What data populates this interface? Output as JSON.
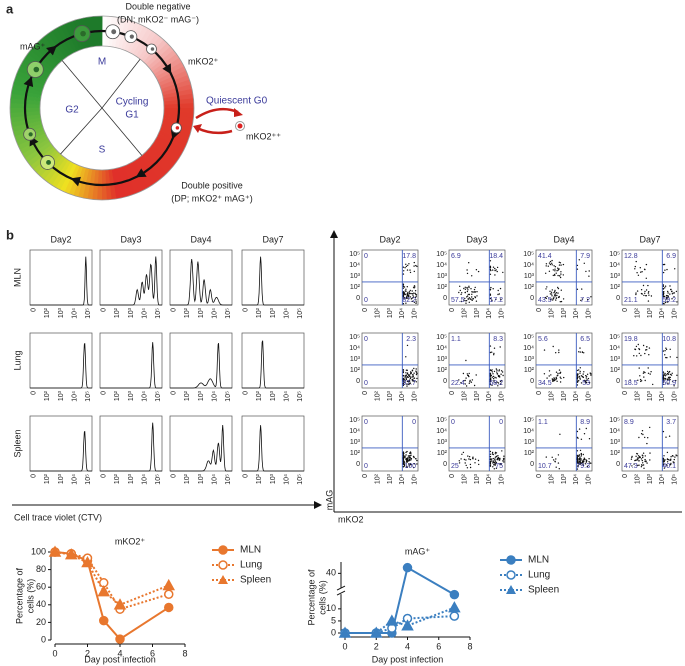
{
  "panel_a": {
    "label": "a",
    "dn": "Double negative",
    "dn_sub": "(DN; mKO2⁻ mAG⁻)",
    "mag": "mAG⁺",
    "mko2": "mKO2⁺",
    "phases": {
      "m": "M",
      "g2": "G2",
      "g1": [
        "Cycling",
        "G1"
      ],
      "s": "S"
    },
    "g0": "Quiescent G0",
    "mko2pp": "mKO2⁺⁺",
    "dp": "Double positive",
    "dp_sub": "(DP; mKO2⁺ mAG⁺)"
  },
  "panel_b": {
    "label": "b",
    "days": [
      "Day2",
      "Day3",
      "Day4",
      "Day7"
    ],
    "tissues": [
      "MLN",
      "Lung",
      "Spleen"
    ],
    "x_ticks": [
      "0",
      "10²",
      "10³",
      "10⁴",
      "10⁵"
    ],
    "y_ticks": [
      "10⁵",
      "10⁴",
      "10³",
      "10²",
      "0"
    ],
    "ctv_label": "Cell trace violet (CTV)",
    "flow_y_label": "mAG",
    "flow_x_label": "mKO2",
    "quadrants": [
      [
        [
          0,
          17.8,
          0,
          82.2
        ],
        [
          6.9,
          18.4,
          57.5,
          17.2
        ],
        [
          41.4,
          7.9,
          43.5,
          7.2
        ],
        [
          12.8,
          6.9,
          21.1,
          59.2
        ]
      ],
      [
        [
          0,
          2.3,
          0,
          97.7
        ],
        [
          1.1,
          8.3,
          22.4,
          68.2
        ],
        [
          5.6,
          6.5,
          34.5,
          53
        ],
        [
          19.8,
          10.8,
          18.5,
          50.9
        ]
      ],
      [
        [
          0,
          0,
          0,
          100
        ],
        [
          0,
          0,
          25,
          75
        ],
        [
          1.1,
          8.9,
          10.7,
          79.3
        ],
        [
          8.9,
          3.7,
          47.3,
          40.1
        ]
      ]
    ]
  },
  "chart_data": [
    {
      "type": "line",
      "title": "mKO2⁺",
      "ylabel": [
        "Percentage of",
        "cells (%)"
      ],
      "xlabel": "Day post infection",
      "xlim": [
        0,
        8
      ],
      "xticks": [
        0,
        2,
        4,
        6,
        8
      ],
      "ylim": [
        0,
        100
      ],
      "yticks": [
        0,
        20,
        40,
        60,
        80,
        100
      ],
      "x": [
        0,
        1,
        2,
        3,
        4,
        7
      ],
      "series": [
        {
          "name": "MLN",
          "color": "#e8772e",
          "marker": "circle",
          "linestyle": "solid",
          "values": [
            100,
            98,
            90,
            22,
            1,
            37
          ]
        },
        {
          "name": "Lung",
          "color": "#e8772e",
          "marker": "open-circle",
          "linestyle": "dotted",
          "values": [
            100,
            98,
            93,
            65,
            35,
            52
          ]
        },
        {
          "name": "Spleen",
          "color": "#e8772e",
          "marker": "triangle",
          "linestyle": "dotted",
          "values": [
            100,
            97,
            88,
            55,
            40,
            62
          ]
        }
      ]
    },
    {
      "type": "line",
      "title": "mAG⁺",
      "ylabel": [
        "Percentage of",
        "cells (%)"
      ],
      "xlabel": "Day post infection",
      "xlim": [
        0,
        8
      ],
      "xticks": [
        0,
        2,
        4,
        6,
        8
      ],
      "ylim": [
        0,
        50
      ],
      "yticks": [
        0,
        5,
        10,
        40
      ],
      "y_axis_break": true,
      "x": [
        0,
        2,
        3,
        4,
        7
      ],
      "series": [
        {
          "name": "MLN",
          "color": "#3b7fc0",
          "marker": "circle",
          "linestyle": "solid",
          "values": [
            0,
            0,
            0,
            45,
            22
          ]
        },
        {
          "name": "Lung",
          "color": "#3b7fc0",
          "marker": "open-circle",
          "linestyle": "dotted",
          "values": [
            0,
            0,
            2,
            6,
            7
          ]
        },
        {
          "name": "Spleen",
          "color": "#3b7fc0",
          "marker": "triangle",
          "linestyle": "dotted",
          "values": [
            0,
            0,
            5,
            3,
            11
          ]
        }
      ]
    }
  ]
}
